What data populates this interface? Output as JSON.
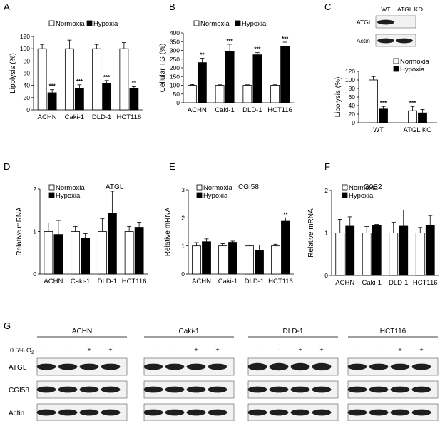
{
  "colors": {
    "normoxia_fill": "#ffffff",
    "hypoxia_fill": "#000000",
    "stroke": "#000000",
    "band": "#1e1e1e",
    "band_bg": "#f2f2f2"
  },
  "chart_data": [
    {
      "panel": "A",
      "type": "bar",
      "categories": [
        "ACHN",
        "Caki-1",
        "DLD-1",
        "HCT116"
      ],
      "ylabel": "Lipolysis (%)",
      "ylim": [
        0,
        120
      ],
      "yticks": [
        0,
        20,
        40,
        60,
        80,
        100,
        120
      ],
      "legend": [
        "Normoxia",
        "Hypoxia"
      ],
      "series": [
        {
          "name": "Normoxia",
          "values": [
            100,
            100,
            100,
            100
          ],
          "errors": [
            7,
            14,
            7,
            10
          ],
          "sig": [
            "",
            "",
            "",
            ""
          ]
        },
        {
          "name": "Hypoxia",
          "values": [
            28,
            35,
            43,
            35
          ],
          "errors": [
            5,
            6,
            5,
            3
          ],
          "sig": [
            "***",
            "***",
            "***",
            "**"
          ]
        }
      ]
    },
    {
      "panel": "B",
      "type": "bar",
      "categories": [
        "ACHN",
        "Caki-1",
        "DLD-1",
        "HCT116"
      ],
      "ylabel": "Cellular TG (%)",
      "ylim": [
        0,
        400
      ],
      "yticks": [
        0,
        50,
        100,
        150,
        200,
        250,
        300,
        350,
        400
      ],
      "legend": [
        "Normoxia",
        "Hypoxia"
      ],
      "series": [
        {
          "name": "Normoxia",
          "values": [
            100,
            100,
            100,
            100
          ],
          "errors": [
            4,
            3,
            3,
            3
          ],
          "sig": [
            "",
            "",
            "",
            ""
          ]
        },
        {
          "name": "Hypoxia",
          "values": [
            230,
            295,
            275,
            322
          ],
          "errors": [
            25,
            40,
            12,
            25
          ],
          "sig": [
            "**",
            "***",
            "***",
            "***"
          ]
        }
      ]
    },
    {
      "panel": "C",
      "type": "bar",
      "categories": [
        "WT",
        "ATGL KO"
      ],
      "ylabel": "Lipolysis (%)",
      "ylim": [
        0,
        120
      ],
      "yticks": [
        0,
        20,
        40,
        60,
        80,
        100,
        120
      ],
      "legend": [
        "Normoxia",
        "Hypoxia"
      ],
      "series": [
        {
          "name": "Normoxia",
          "values": [
            100,
            28
          ],
          "errors": [
            8,
            10
          ],
          "sig": [
            "",
            "***"
          ]
        },
        {
          "name": "Hypoxia",
          "values": [
            32,
            23
          ],
          "errors": [
            6,
            8
          ],
          "sig": [
            "***",
            ""
          ]
        }
      ],
      "blot": {
        "headers": [
          "WT",
          "ATGL KO"
        ],
        "rows": [
          "ATGL",
          "Actin"
        ]
      }
    },
    {
      "panel": "D",
      "type": "bar",
      "title": "ATGL",
      "categories": [
        "ACHN",
        "Caki-1",
        "DLD-1",
        "HCT116"
      ],
      "ylabel": "Relative mRNA",
      "ylim": [
        0,
        2
      ],
      "yticks": [
        0,
        1,
        2
      ],
      "legend": [
        "Normoxia",
        "Hypoxia"
      ],
      "series": [
        {
          "name": "Normoxia",
          "values": [
            1.0,
            1.0,
            1.0,
            1.0
          ],
          "errors": [
            0.2,
            0.12,
            0.3,
            0.12
          ],
          "sig": [
            "",
            "",
            "",
            ""
          ]
        },
        {
          "name": "Hypoxia",
          "values": [
            0.93,
            0.85,
            1.43,
            1.1
          ],
          "errors": [
            0.33,
            0.1,
            0.52,
            0.12
          ],
          "sig": [
            "",
            "",
            "",
            ""
          ]
        }
      ]
    },
    {
      "panel": "E",
      "type": "bar",
      "title": "CGI58",
      "categories": [
        "ACHN",
        "Caki-1",
        "DLD-1",
        "HCT116"
      ],
      "ylabel": "Relative mRNA",
      "ylim": [
        0,
        3
      ],
      "yticks": [
        0,
        1,
        2,
        3
      ],
      "legend": [
        "Normoxia",
        "Hypoxia"
      ],
      "series": [
        {
          "name": "Normoxia",
          "values": [
            1.0,
            1.0,
            1.0,
            1.0
          ],
          "errors": [
            0.12,
            0.08,
            0.03,
            0.06
          ],
          "sig": [
            "",
            "",
            "",
            ""
          ]
        },
        {
          "name": "Hypoxia",
          "values": [
            1.15,
            1.13,
            0.83,
            1.88
          ],
          "errors": [
            0.1,
            0.04,
            0.2,
            0.12
          ],
          "sig": [
            "",
            "",
            "",
            "**"
          ]
        }
      ]
    },
    {
      "panel": "F",
      "type": "bar",
      "title": "G0S2",
      "categories": [
        "ACHN",
        "Caki-1",
        "DLD-1",
        "HCT116"
      ],
      "ylabel": "Relative mRNA",
      "ylim": [
        0,
        2
      ],
      "yticks": [
        0,
        1,
        2
      ],
      "legend": [
        "Normoxia",
        "Hypoxia"
      ],
      "series": [
        {
          "name": "Normoxia",
          "values": [
            1.0,
            1.0,
            1.0,
            1.0
          ],
          "errors": [
            0.32,
            0.15,
            0.25,
            0.13
          ],
          "sig": [
            "",
            "",
            "",
            ""
          ]
        },
        {
          "name": "Hypoxia",
          "values": [
            1.16,
            1.18,
            1.16,
            1.17
          ],
          "errors": [
            0.22,
            0.02,
            0.38,
            0.24
          ],
          "sig": [
            "",
            "",
            "",
            ""
          ]
        }
      ]
    }
  ],
  "blot_g": {
    "panel": "G",
    "condition_label": "0.5% O",
    "condition_sub": "2",
    "signs": [
      "-",
      "-",
      "+",
      "+"
    ],
    "groups": [
      "ACHN",
      "Caki-1",
      "DLD-1",
      "HCT116"
    ],
    "rows": [
      "ATGL",
      "CGI58",
      "Actin"
    ]
  }
}
